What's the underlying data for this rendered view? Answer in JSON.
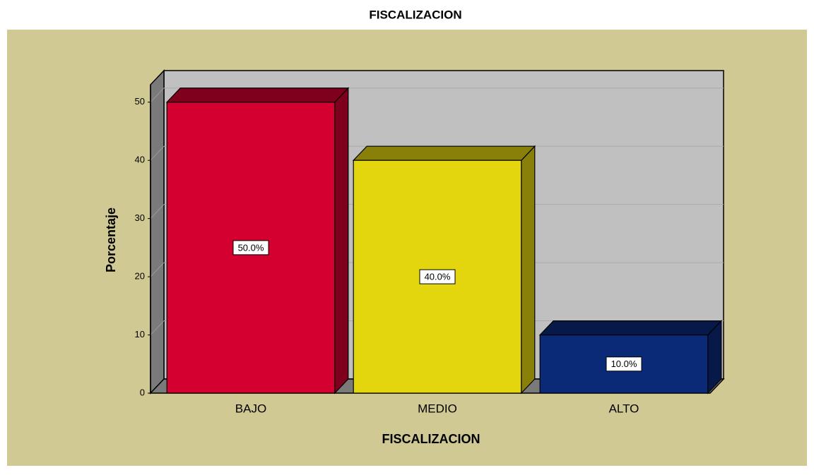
{
  "chart_data": {
    "type": "bar",
    "title": "FISCALIZACION",
    "x_label": "FISCALIZACION",
    "y_label": "Porcentaje",
    "categories": [
      "BAJO",
      "MEDIO",
      "ALTO"
    ],
    "values": [
      50,
      40,
      10
    ],
    "value_labels": [
      "50.0%",
      "40.0%",
      "10.0%"
    ],
    "colors": [
      "#d40030",
      "#e3d60f",
      "#0a2a78"
    ],
    "ylim": [
      0,
      53
    ],
    "yticks": [
      0,
      10,
      20,
      30,
      40,
      50
    ],
    "grid": true
  }
}
